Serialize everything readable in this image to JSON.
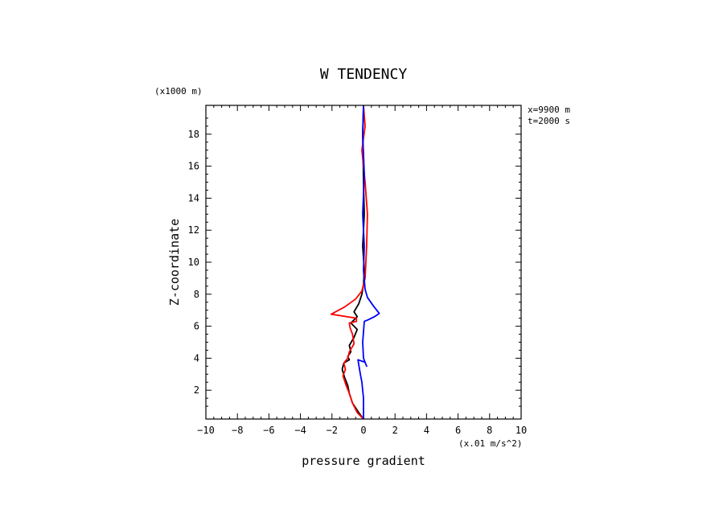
{
  "chart_data": {
    "type": "line",
    "title": "W TENDENCY",
    "xlabel": "pressure gradient",
    "ylabel": "Z-coordinate",
    "x_unit": "(x.01 m/s^2)",
    "y_unit": "(x1000 m)",
    "annotations": [
      "x=9900 m",
      "t=2000 s"
    ],
    "xlim": [
      -10,
      10
    ],
    "ylim": [
      0.2,
      19.8
    ],
    "xticks": [
      -10,
      -8,
      -6,
      -4,
      -2,
      0,
      2,
      4,
      6,
      8,
      10
    ],
    "yticks": [
      2,
      4,
      6,
      8,
      10,
      12,
      14,
      16,
      18
    ],
    "grid": false,
    "legend": "none",
    "series": [
      {
        "color": "#000000",
        "x": [
          0.0,
          -0.3,
          -0.7,
          -0.9,
          -1.0,
          -1.2,
          -1.35,
          -1.25,
          -0.9,
          -1.0,
          -0.8,
          -0.9,
          -0.6,
          -0.4,
          -0.8,
          -0.4,
          -0.6,
          -0.3,
          -0.1,
          0.0,
          0.05,
          -0.05,
          0.05,
          0.0,
          -0.05,
          0.0
        ],
        "y": [
          0.2,
          0.6,
          1.2,
          1.8,
          2.3,
          2.8,
          3.3,
          3.7,
          3.9,
          4.1,
          4.4,
          4.8,
          5.3,
          5.8,
          6.2,
          6.6,
          6.9,
          7.4,
          8.0,
          8.6,
          9.5,
          11.0,
          13.0,
          15.0,
          18.0,
          19.8
        ]
      },
      {
        "color": "#ff0000",
        "x": [
          0.0,
          -0.4,
          -0.7,
          -0.9,
          -1.1,
          -1.3,
          -1.15,
          -1.25,
          -1.0,
          -0.9,
          -0.6,
          -0.7,
          -0.85,
          -0.9,
          -0.45,
          -0.45,
          -2.05,
          -1.2,
          -0.5,
          -0.1,
          0.1,
          0.2,
          0.25,
          0.1,
          -0.1,
          0.1,
          0.0
        ],
        "y": [
          0.2,
          0.6,
          1.2,
          1.8,
          2.3,
          2.9,
          3.3,
          3.7,
          4.0,
          4.4,
          4.9,
          5.5,
          5.9,
          6.2,
          6.3,
          6.5,
          6.75,
          7.2,
          7.7,
          8.2,
          9.0,
          11.0,
          13.0,
          15.0,
          17.0,
          18.5,
          19.8
        ]
      },
      {
        "color": "#0000ff",
        "x": [
          0.0,
          0.0,
          -0.1,
          -0.2,
          -0.35,
          0.1,
          0.2,
          0.0,
          -0.05,
          0.05,
          0.3,
          0.7,
          1.0,
          0.6,
          0.25,
          0.1,
          0.0,
          0.05,
          -0.05,
          0.05,
          -0.05,
          0.0
        ],
        "y": [
          0.2,
          1.5,
          2.5,
          3.0,
          3.9,
          3.75,
          3.5,
          4.0,
          5.0,
          6.3,
          6.4,
          6.6,
          6.8,
          7.3,
          7.8,
          8.3,
          9.5,
          11.0,
          13.0,
          15.5,
          18.0,
          19.8
        ]
      }
    ]
  }
}
